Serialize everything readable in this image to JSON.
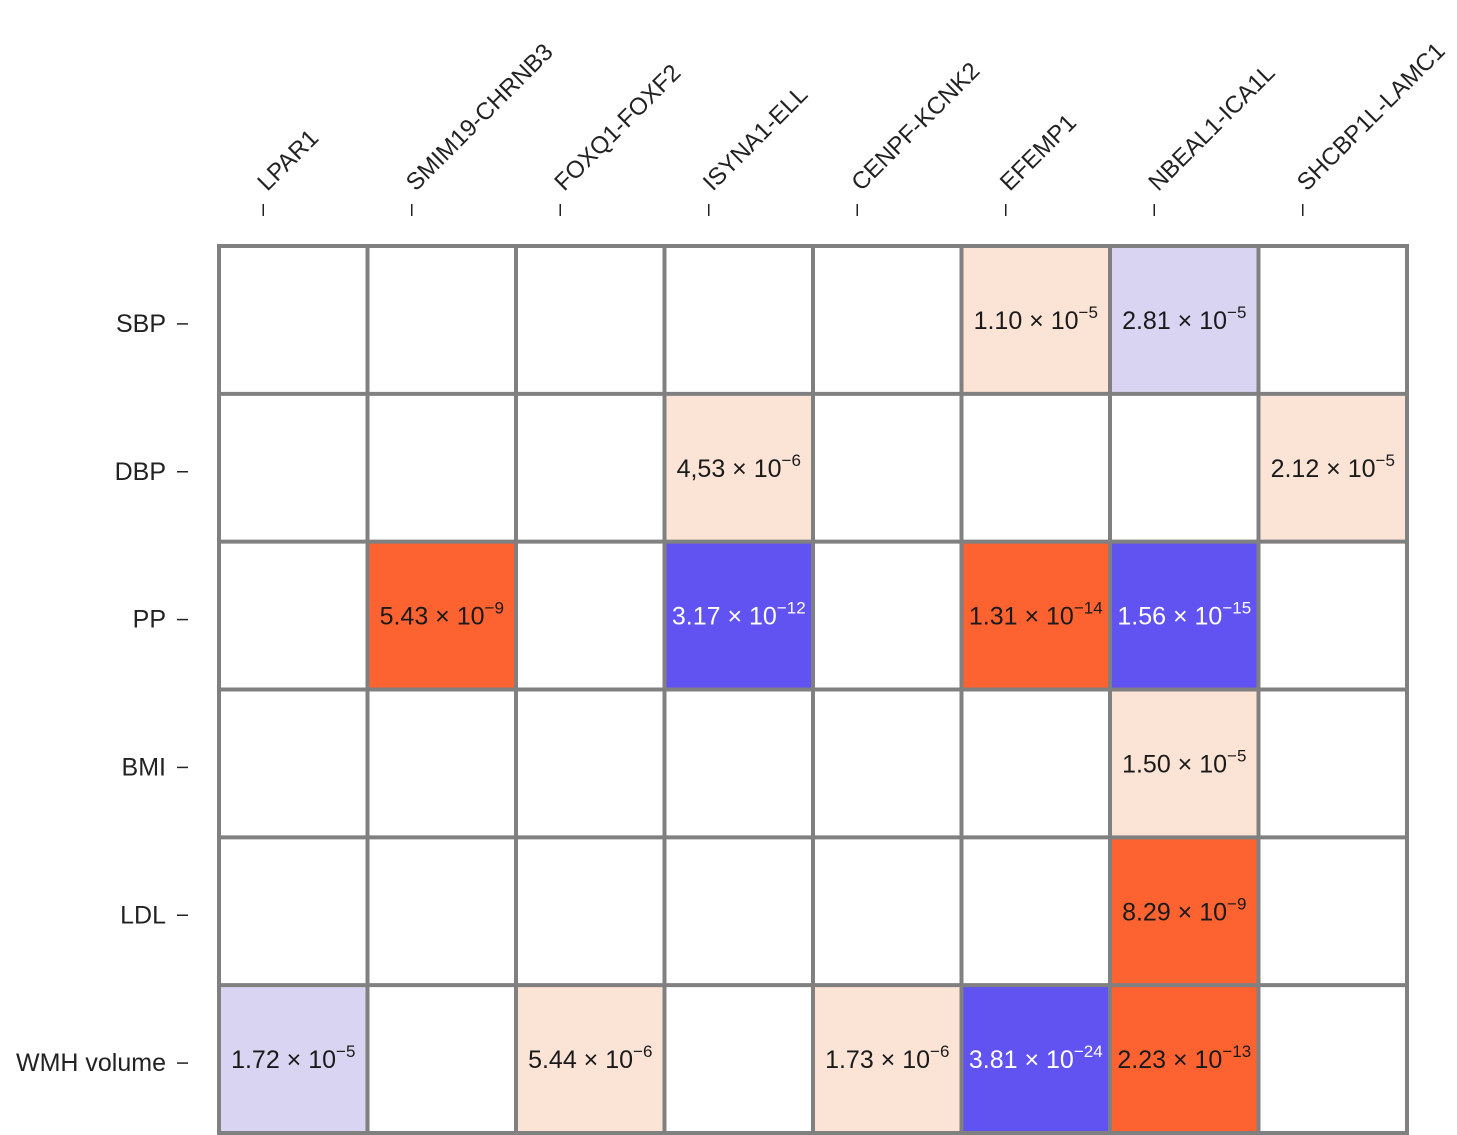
{
  "chart_data": {
    "type": "heatmap",
    "columns": [
      "LPAR1",
      "SMIM19-CHRNB3",
      "FOXQ1-FOXF2",
      "ISYNA1-ELL",
      "CENPF-KCNK2",
      "EFEMP1",
      "NBEAL1-ICA1L",
      "SHCBP1L-LAMC1"
    ],
    "rows": [
      "SBP",
      "DBP",
      "PP",
      "BMI",
      "LDL",
      "WMH volume"
    ],
    "cells": [
      {
        "row": 0,
        "col": 5,
        "mantissa": "1.10",
        "exponent": "−5",
        "fill": "#fbe3d5",
        "text_color": "#1a1a1a"
      },
      {
        "row": 0,
        "col": 6,
        "mantissa": "2.81",
        "exponent": "−5",
        "fill": "#d8d4f2",
        "text_color": "#1a1a1a"
      },
      {
        "row": 1,
        "col": 3,
        "mantissa": "4,53",
        "exponent": "−6",
        "fill": "#fbe3d5",
        "text_color": "#1a1a1a"
      },
      {
        "row": 1,
        "col": 7,
        "mantissa": "2.12",
        "exponent": "−5",
        "fill": "#fbe3d5",
        "text_color": "#1a1a1a"
      },
      {
        "row": 2,
        "col": 1,
        "mantissa": "5.43",
        "exponent": "−9",
        "fill": "#fd6231",
        "text_color": "#1a1a1a"
      },
      {
        "row": 2,
        "col": 3,
        "mantissa": "3.17",
        "exponent": "−12",
        "fill": "#6152f2",
        "text_color": "#ffffff"
      },
      {
        "row": 2,
        "col": 5,
        "mantissa": "1.31",
        "exponent": "−14",
        "fill": "#fd6231",
        "text_color": "#1a1a1a"
      },
      {
        "row": 2,
        "col": 6,
        "mantissa": "1.56",
        "exponent": "−15",
        "fill": "#6152f2",
        "text_color": "#ffffff"
      },
      {
        "row": 3,
        "col": 6,
        "mantissa": "1.50",
        "exponent": "−5",
        "fill": "#fbe3d5",
        "text_color": "#1a1a1a"
      },
      {
        "row": 4,
        "col": 6,
        "mantissa": "8.29",
        "exponent": "−9",
        "fill": "#fd6231",
        "text_color": "#1a1a1a"
      },
      {
        "row": 5,
        "col": 0,
        "mantissa": "1.72",
        "exponent": "−5",
        "fill": "#d8d4f2",
        "text_color": "#1a1a1a"
      },
      {
        "row": 5,
        "col": 2,
        "mantissa": "5.44",
        "exponent": "−6",
        "fill": "#fbe3d5",
        "text_color": "#1a1a1a"
      },
      {
        "row": 5,
        "col": 4,
        "mantissa": "1.73",
        "exponent": "−6",
        "fill": "#fbe3d5",
        "text_color": "#1a1a1a"
      },
      {
        "row": 5,
        "col": 5,
        "mantissa": "3.81",
        "exponent": "−24",
        "fill": "#6152f2",
        "text_color": "#ffffff"
      },
      {
        "row": 5,
        "col": 6,
        "mantissa": "2.23",
        "exponent": "−13",
        "fill": "#fd6231",
        "text_color": "#1a1a1a"
      }
    ],
    "colors": {
      "grid_line": "#808080",
      "empty_cell": "#ffffff",
      "strong_orange": "#fd6231",
      "light_orange": "#fbe3d5",
      "strong_blue": "#6152f2",
      "light_blue": "#d8d4f2"
    }
  }
}
